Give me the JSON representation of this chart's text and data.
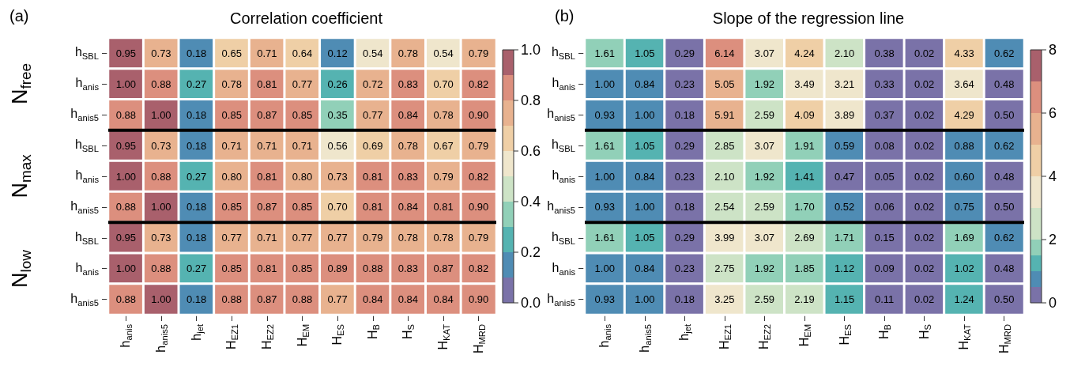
{
  "chart_data": [
    {
      "type": "heatmap",
      "title": "Correlation coefficient",
      "annotations": [
        "(a)",
        "N$_{free}$",
        "N$_{max}$",
        "N$_{low}$"
      ],
      "categories": [
        "h$_{anis}$",
        "h$_{anis5}$",
        "h$_{jet}$",
        "H$_{EZ1}$",
        "H$_{EZ2}$",
        "H$_{EM}$",
        "H$_{ES}$",
        "H$_{B}$",
        "H$_{S}$",
        "H$_{KAT}$",
        "H$_{MRD}$"
      ],
      "y_categories": [
        "h$_{SBL}$",
        "h$_{anis}$",
        "h$_{anis5}$",
        "h$_{SBL}$",
        "h$_{anis}$",
        "h$_{anis5}$",
        "h$_{SBL}$",
        "h$_{anis}$",
        "h$_{anis5}$"
      ],
      "cells": [
        [
          0.95,
          0.73,
          0.18,
          0.65,
          0.71,
          0.64,
          0.12,
          0.54,
          0.78,
          0.54,
          0.79
        ],
        [
          1.0,
          0.88,
          0.27,
          0.78,
          0.81,
          0.77,
          0.26,
          0.72,
          0.83,
          0.7,
          0.82
        ],
        [
          0.88,
          1.0,
          0.18,
          0.85,
          0.87,
          0.85,
          0.35,
          0.77,
          0.84,
          0.78,
          0.9
        ],
        [
          0.95,
          0.73,
          0.18,
          0.71,
          0.71,
          0.71,
          0.56,
          0.69,
          0.78,
          0.67,
          0.79
        ],
        [
          1.0,
          0.88,
          0.27,
          0.8,
          0.81,
          0.8,
          0.73,
          0.81,
          0.83,
          0.79,
          0.82
        ],
        [
          0.88,
          1.0,
          0.18,
          0.85,
          0.87,
          0.85,
          0.7,
          0.81,
          0.84,
          0.81,
          0.9
        ],
        [
          0.95,
          0.73,
          0.18,
          0.77,
          0.71,
          0.77,
          0.77,
          0.79,
          0.78,
          0.78,
          0.79
        ],
        [
          1.0,
          0.88,
          0.27,
          0.85,
          0.81,
          0.85,
          0.89,
          0.88,
          0.83,
          0.87,
          0.82
        ],
        [
          0.88,
          1.0,
          0.18,
          0.88,
          0.87,
          0.88,
          0.77,
          0.84,
          0.84,
          0.84,
          0.9
        ]
      ],
      "cell_labels": [
        [
          "0.95",
          "0.73",
          "0.18",
          "0.65",
          "0.71",
          "0.64",
          "0.12",
          "0.54",
          "0.78",
          "0.54",
          "0.79"
        ],
        [
          "1.00",
          "0.88",
          "0.27",
          "0.78",
          "0.81",
          "0.77",
          "0.26",
          "0.72",
          "0.83",
          "0.70",
          "0.82"
        ],
        [
          "0.88",
          "1.00",
          "0.18",
          "0.85",
          "0.87",
          "0.85",
          "0.35",
          "0.77",
          "0.84",
          "0.78",
          "0.90"
        ],
        [
          "0.95",
          "0.73",
          "0.18",
          "0.71",
          "0.71",
          "0.71",
          "0.56",
          "0.69",
          "0.78",
          "0.67",
          "0.79"
        ],
        [
          "1.00",
          "0.88",
          "0.27",
          "0.80",
          "0.81",
          "0.80",
          "0.73",
          "0.81",
          "0.83",
          "0.79",
          "0.82"
        ],
        [
          "0.88",
          "1.00",
          "0.18",
          "0.85",
          "0.87",
          "0.85",
          "0.70",
          "0.81",
          "0.84",
          "0.81",
          "0.90"
        ],
        [
          "0.95",
          "0.73",
          "0.18",
          "0.77",
          "0.71",
          "0.77",
          "0.77",
          "0.79",
          "0.78",
          "0.78",
          "0.79"
        ],
        [
          "1.00",
          "0.88",
          "0.27",
          "0.85",
          "0.81",
          "0.85",
          "0.89",
          "0.88",
          "0.83",
          "0.87",
          "0.82"
        ],
        [
          "0.88",
          "1.00",
          "0.18",
          "0.88",
          "0.87",
          "0.88",
          "0.77",
          "0.84",
          "0.84",
          "0.84",
          "0.90"
        ]
      ],
      "clim": [
        0,
        1
      ],
      "cticks": [
        {
          "value": 0,
          "label": "0.0"
        },
        {
          "value": 0.1,
          "label": null
        },
        0.2,
        {
          "value": 0.3,
          "label": null
        },
        0.4,
        {
          "value": 0.5,
          "label": null
        },
        0.6,
        {
          "value": 0.7,
          "label": null
        },
        0.8,
        {
          "value": 0.9,
          "label": null
        },
        {
          "value": 1,
          "label": "1.0"
        }
      ],
      "colors": [
        "#7a72a8",
        "#4f8cb4",
        "#55b3b1",
        "#91d0b8",
        "#cde3c6",
        "#efe6cc",
        "#efcfa6",
        "#e8b28f",
        "#dc8f7e",
        "#a9606c"
      ]
    },
    {
      "type": "heatmap",
      "title": "Slope of the regression line",
      "annotations": [
        "(b)"
      ],
      "categories": [
        "h$_{anis}$",
        "h$_{anis5}$",
        "h$_{jet}$",
        "H$_{EZ1}$",
        "H$_{EZ2}$",
        "H$_{EM}$",
        "H$_{ES}$",
        "H$_{B}$",
        "H$_{S}$",
        "H$_{KAT}$",
        "H$_{MRD}$"
      ],
      "y_categories": [
        "h$_{SBL}$",
        "h$_{anis}$",
        "h$_{anis5}$",
        "h$_{SBL}$",
        "h$_{anis}$",
        "h$_{anis5}$",
        "h$_{SBL}$",
        "h$_{anis}$",
        "h$_{anis5}$"
      ],
      "cells": [
        [
          1.61,
          1.05,
          0.29,
          6.14,
          3.07,
          4.24,
          2.1,
          0.38,
          0.02,
          4.33,
          0.62
        ],
        [
          1.0,
          0.84,
          0.23,
          5.05,
          1.92,
          3.49,
          3.21,
          0.33,
          0.02,
          3.64,
          0.48
        ],
        [
          0.93,
          1.0,
          0.18,
          5.91,
          2.59,
          4.09,
          3.89,
          0.37,
          0.02,
          4.29,
          0.5
        ],
        [
          1.61,
          1.05,
          0.29,
          2.85,
          3.07,
          1.91,
          0.59,
          0.08,
          0.02,
          0.88,
          0.62
        ],
        [
          1.0,
          0.84,
          0.23,
          2.1,
          1.92,
          1.41,
          0.47,
          0.05,
          0.02,
          0.6,
          0.48
        ],
        [
          0.93,
          1.0,
          0.18,
          2.54,
          2.59,
          1.7,
          0.52,
          0.06,
          0.02,
          0.75,
          0.5
        ],
        [
          1.61,
          1.05,
          0.29,
          3.99,
          3.07,
          2.69,
          1.71,
          0.15,
          0.02,
          1.69,
          0.62
        ],
        [
          1.0,
          0.84,
          0.23,
          2.75,
          1.92,
          1.85,
          1.12,
          0.09,
          0.02,
          1.02,
          0.48
        ],
        [
          0.93,
          1.0,
          0.18,
          3.25,
          2.59,
          2.19,
          1.15,
          0.11,
          0.02,
          1.24,
          0.5
        ]
      ],
      "cell_labels": [
        [
          "1.61",
          "1.05",
          "0.29",
          "6.14",
          "3.07",
          "4.24",
          "2.10",
          "0.38",
          "0.02",
          "4.33",
          "0.62"
        ],
        [
          "1.00",
          "0.84",
          "0.23",
          "5.05",
          "1.92",
          "3.49",
          "3.21",
          "0.33",
          "0.02",
          "3.64",
          "0.48"
        ],
        [
          "0.93",
          "1.00",
          "0.18",
          "5.91",
          "2.59",
          "4.09",
          "3.89",
          "0.37",
          "0.02",
          "4.29",
          "0.50"
        ],
        [
          "1.61",
          "1.05",
          "0.29",
          "2.85",
          "3.07",
          "1.91",
          "0.59",
          "0.08",
          "0.02",
          "0.88",
          "0.62"
        ],
        [
          "1.00",
          "0.84",
          "0.23",
          "2.10",
          "1.92",
          "1.41",
          "0.47",
          "0.05",
          "0.02",
          "0.60",
          "0.48"
        ],
        [
          "0.93",
          "1.00",
          "0.18",
          "2.54",
          "2.59",
          "1.70",
          "0.52",
          "0.06",
          "0.02",
          "0.75",
          "0.50"
        ],
        [
          "1.61",
          "1.05",
          "0.29",
          "3.99",
          "3.07",
          "2.69",
          "1.71",
          "0.15",
          "0.02",
          "1.69",
          "0.62"
        ],
        [
          "1.00",
          "0.84",
          "0.23",
          "2.75",
          "1.92",
          "1.85",
          "1.12",
          "0.09",
          "0.02",
          "1.02",
          "0.48"
        ],
        [
          "0.93",
          "1.00",
          "0.18",
          "3.25",
          "2.59",
          "2.19",
          "1.15",
          "0.11",
          "0.02",
          "1.24",
          "0.50"
        ]
      ],
      "clim": [
        0,
        8
      ],
      "cticks": [
        0,
        {
          "value": 0.5,
          "label": null
        },
        {
          "value": 1,
          "label": null
        },
        {
          "value": 1.5,
          "label": null
        },
        2,
        {
          "value": 3,
          "label": null
        },
        4,
        {
          "value": 5,
          "label": null
        },
        6,
        {
          "value": 7,
          "label": null
        },
        8
      ],
      "colors": [
        "#7a72a8",
        "#4f8cb4",
        "#55b3b1",
        "#91d0b8",
        "#cde3c6",
        "#efe6cc",
        "#efcfa6",
        "#e8b28f",
        "#dc8f7e",
        "#a9606c"
      ]
    }
  ]
}
